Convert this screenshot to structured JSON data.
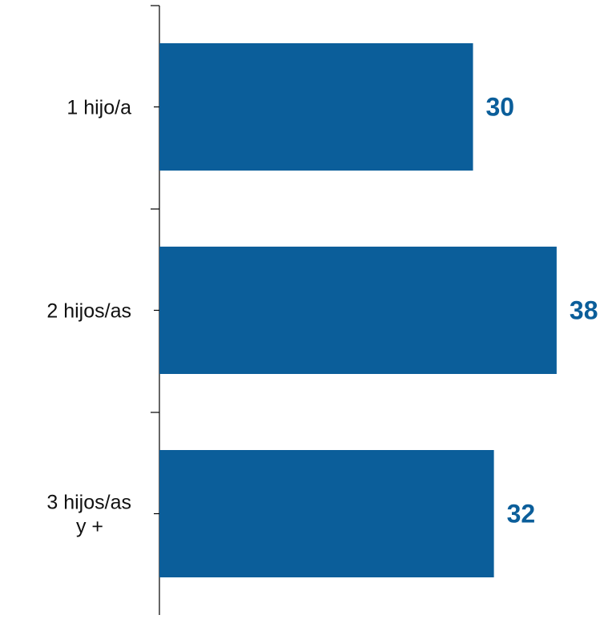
{
  "chart_data": {
    "type": "bar",
    "orientation": "horizontal",
    "categories": [
      [
        "1 hijo/a"
      ],
      [
        "2 hijos/as"
      ],
      [
        "3 hijos/as",
        "y +"
      ]
    ],
    "values": [
      30,
      38,
      32
    ],
    "data_labels": [
      "30",
      "38",
      "32"
    ],
    "title": "",
    "xlabel": "",
    "ylabel": "",
    "grid": false,
    "legend": "none",
    "colors": {
      "bar": "#0b5e9a",
      "value_label": "#0b5e9a",
      "axis": "#000000"
    }
  }
}
